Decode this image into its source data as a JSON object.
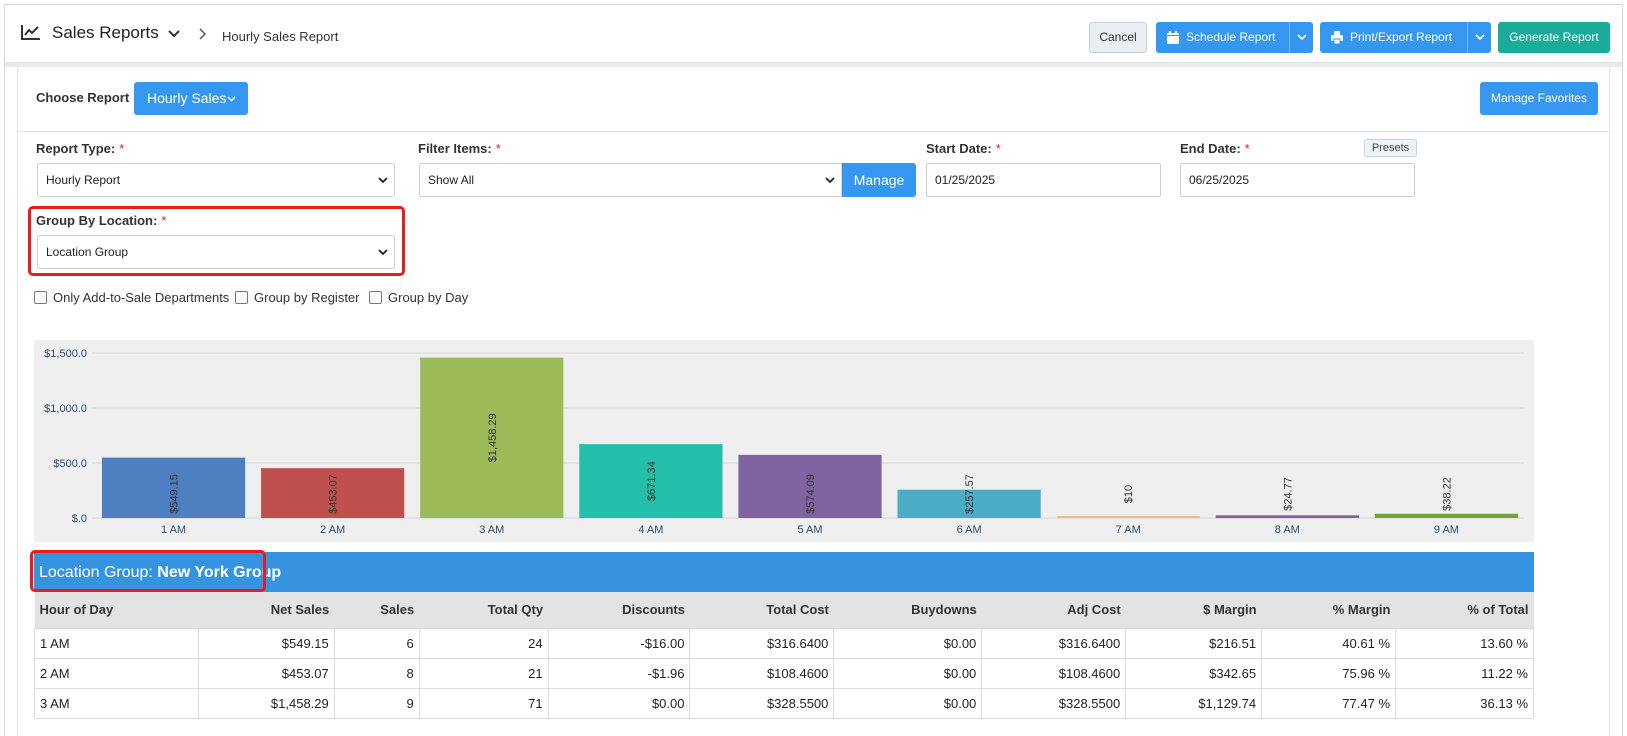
{
  "header": {
    "title": "Sales Reports",
    "breadcrumb": "Hourly Sales Report",
    "cancel_label": "Cancel",
    "schedule_label": "Schedule Report",
    "print_label": "Print/Export Report",
    "generate_label": "Generate Report"
  },
  "choose": {
    "label": "Choose Report",
    "report_button": "Hourly Sales",
    "favorites_button": "Manage Favorites"
  },
  "filters": {
    "report_type_label": "Report Type:",
    "report_type_value": "Hourly Report",
    "filter_items_label": "Filter Items:",
    "filter_items_value": "Show All",
    "manage_label": "Manage",
    "start_date_label": "Start Date:",
    "start_date_value": "01/25/2025",
    "end_date_label": "End Date:",
    "end_date_value": "06/25/2025",
    "presets_label": "Presets",
    "group_by_location_label": "Group By Location:",
    "group_by_location_value": "Location Group",
    "required_mark": "*"
  },
  "checkboxes": [
    {
      "label": "Only Add-to-Sale Departments",
      "checked": false
    },
    {
      "label": "Group by Register",
      "checked": false
    },
    {
      "label": "Group by Day",
      "checked": false
    }
  ],
  "chart_data": {
    "type": "bar",
    "categories": [
      "1 AM",
      "2 AM",
      "3 AM",
      "4 AM",
      "5 AM",
      "6 AM",
      "7 AM",
      "8 AM",
      "9 AM"
    ],
    "values": [
      549.15,
      453.07,
      1458.29,
      671.34,
      574.09,
      257.57,
      10,
      24.77,
      38.22
    ],
    "data_labels": [
      "$549.15",
      "$453.07",
      "$1,458.29",
      "$671.34",
      "$574.09",
      "$257.57",
      "$10",
      "$24.77",
      "$38.22"
    ],
    "colors": [
      "#4e7fc0",
      "#c0504d",
      "#9bbb59",
      "#23bfaa",
      "#8064a2",
      "#4bacc6",
      "#f4bd84",
      "#8064a2",
      "#76a13b"
    ],
    "ytick_labels": [
      "$.0",
      "$500.0",
      "$1,000.0",
      "$1,500.0"
    ],
    "yticks": [
      0,
      500,
      1000,
      1500
    ],
    "ylim": [
      0,
      1500
    ],
    "grid": true,
    "legend": "none"
  },
  "group": {
    "prefix": "Location Group: ",
    "name": "New York Group"
  },
  "table": {
    "columns": [
      "Hour of Day",
      "Net Sales",
      "Sales",
      "Total Qty",
      "Discounts",
      "Total Cost",
      "Buydowns",
      "Adj Cost",
      "$ Margin",
      "% Margin",
      "% of Total"
    ],
    "rows": [
      [
        "1 AM",
        "$549.15",
        "6",
        "24",
        "-$16.00",
        "$316.6400",
        "$0.00",
        "$316.6400",
        "$216.51",
        "40.61 %",
        "13.60 %"
      ],
      [
        "2 AM",
        "$453.07",
        "8",
        "21",
        "-$1.96",
        "$108.4600",
        "$0.00",
        "$108.4600",
        "$342.65",
        "75.96 %",
        "11.22 %"
      ],
      [
        "3 AM",
        "$1,458.29",
        "9",
        "71",
        "$0.00",
        "$328.5500",
        "$0.00",
        "$328.5500",
        "$1,129.74",
        "77.47 %",
        "36.13 %"
      ]
    ]
  }
}
